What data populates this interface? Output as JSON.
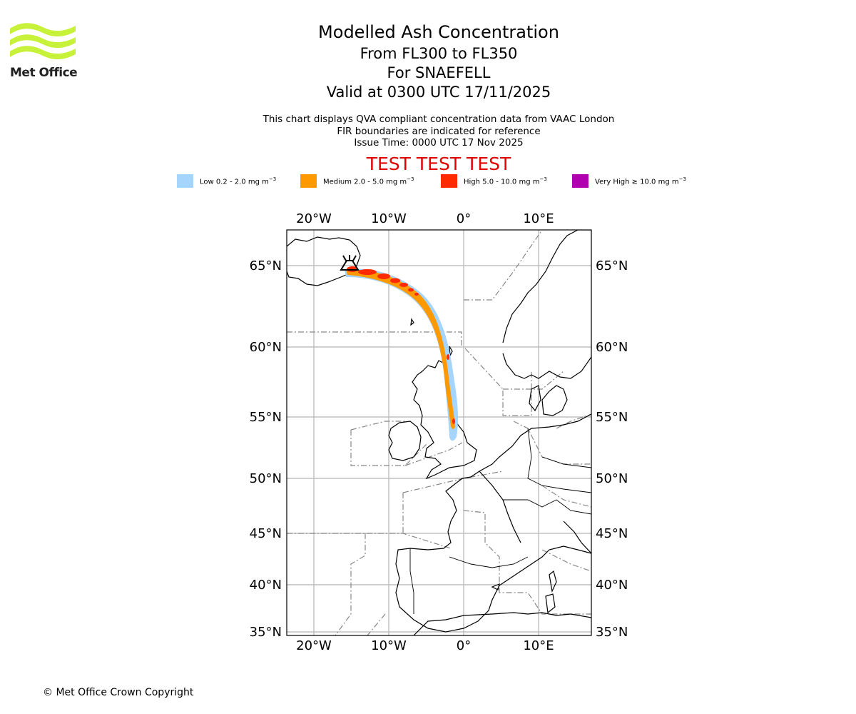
{
  "header": {
    "logo_text": "Met Office",
    "title": "Modelled Ash Concentration",
    "subtitle_levels": "From FL300 to FL350",
    "subtitle_volcano": "For SNAEFELL",
    "subtitle_valid": "Valid at 0300 UTC 17/11/2025",
    "note_1": "This chart displays QVA compliant concentration data from VAAC London",
    "note_2": "FIR boundaries are indicated for reference",
    "note_3": "Issue Time: 0000 UTC 17 Nov 2025",
    "test_banner": "TEST TEST TEST"
  },
  "legend": [
    {
      "label": "Low 0.2 - 2.0 mg m",
      "unit_sup": "−3",
      "color": "#a5d4fc"
    },
    {
      "label": "Medium 2.0 - 5.0 mg m",
      "unit_sup": "−3",
      "color": "#ff9900"
    },
    {
      "label": "High 5.0 - 10.0 mg m",
      "unit_sup": "−3",
      "color": "#ff2a00"
    },
    {
      "label": "Very High  ≥  10.0 mg m",
      "unit_sup": "−3",
      "color": "#b000b0"
    }
  ],
  "map": {
    "lon_ticks": [
      "20°W",
      "10°W",
      "0°",
      "10°E"
    ],
    "lat_ticks": [
      "65°N",
      "60°N",
      "55°N",
      "50°N",
      "45°N",
      "40°N",
      "35°N"
    ],
    "volcano_symbol": "volcano-icon"
  },
  "footer": {
    "copyright": "© Met Office Crown Copyright"
  }
}
